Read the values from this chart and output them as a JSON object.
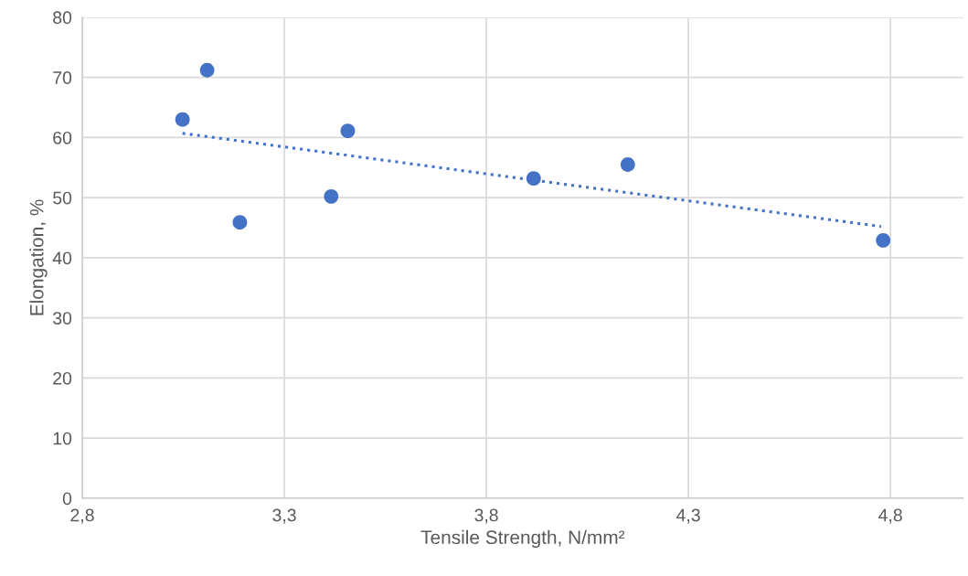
{
  "chart_data": {
    "type": "scatter",
    "xlabel": "Tensile Strength, N/mm²",
    "ylabel": "Elongation, %",
    "xlim": [
      2.8,
      4.98
    ],
    "ylim": [
      0,
      80
    ],
    "xticks": [
      {
        "value": 2.8,
        "label": "2,8"
      },
      {
        "value": 3.3,
        "label": "3,3"
      },
      {
        "value": 3.8,
        "label": "3,8"
      },
      {
        "value": 4.3,
        "label": "4,3"
      },
      {
        "value": 4.8,
        "label": "4,8"
      }
    ],
    "yticks": [
      0,
      10,
      20,
      30,
      40,
      50,
      60,
      70,
      80
    ],
    "grid": true,
    "marker": "circle",
    "series": [
      {
        "color": "#4472c4",
        "x": [
          3.048,
          3.109,
          3.19,
          3.416,
          3.457,
          3.917,
          4.15,
          4.782
        ],
        "values": [
          63.0,
          71.2,
          45.9,
          50.2,
          61.1,
          53.2,
          55.5,
          42.9
        ]
      },
      {
        "type": "line",
        "color": "#4472c4",
        "line_style": "dotted",
        "marker": "none",
        "x": [
          3.048,
          4.777
        ],
        "values": [
          60.7,
          45.2
        ]
      }
    ]
  }
}
